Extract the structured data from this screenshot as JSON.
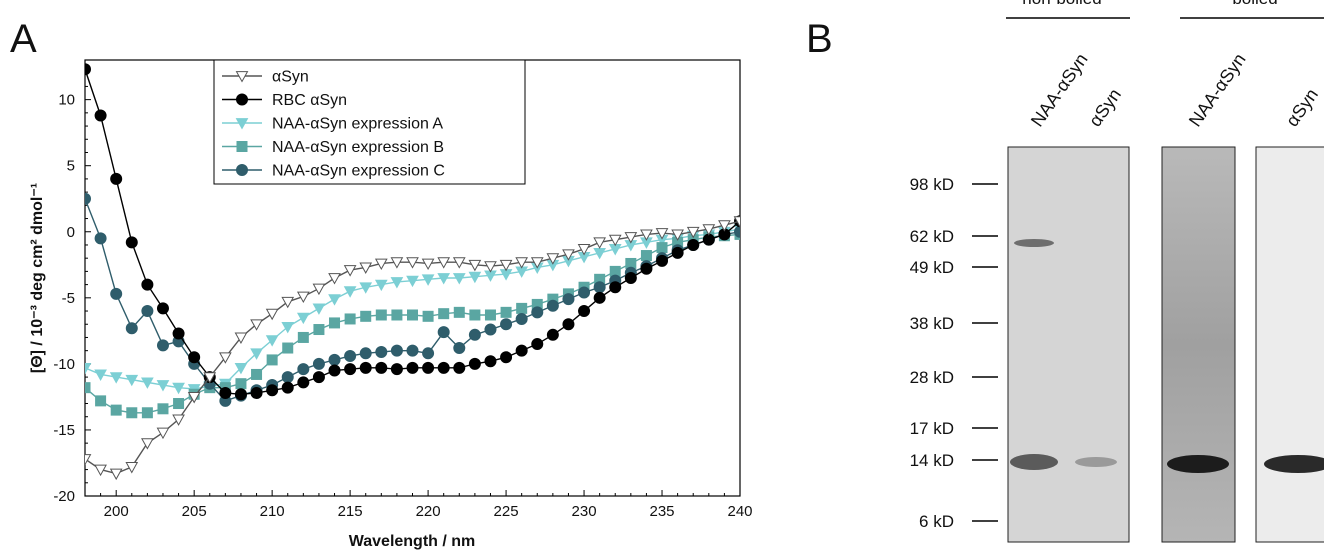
{
  "panels": {
    "a": "A",
    "b": "B"
  },
  "chart_data": {
    "type": "line",
    "xlabel": "Wavelength / nm",
    "ylabel": "[Θ] / 10⁻³ deg cm² dmol⁻¹",
    "xlim": [
      198,
      240
    ],
    "ylim": [
      -20,
      13
    ],
    "xticks": [
      200,
      205,
      210,
      215,
      220,
      225,
      230,
      235,
      240
    ],
    "yticks": [
      -20,
      -15,
      -10,
      -5,
      0,
      5,
      10
    ],
    "grid": false,
    "legend_position": "top-center",
    "x": [
      198,
      199,
      200,
      201,
      202,
      203,
      204,
      205,
      206,
      207,
      208,
      209,
      210,
      211,
      212,
      213,
      214,
      215,
      216,
      217,
      218,
      219,
      220,
      221,
      222,
      223,
      224,
      225,
      226,
      227,
      228,
      229,
      230,
      231,
      232,
      233,
      234,
      235,
      236,
      237,
      238,
      239,
      240
    ],
    "series": [
      {
        "name": "αSyn",
        "marker": "triangle-down-open",
        "color": "#555555",
        "fill": "#ffffff",
        "values": [
          -17.2,
          -18.0,
          -18.3,
          -17.8,
          -16.0,
          -15.2,
          -14.2,
          -12.5,
          -11.0,
          -9.5,
          -8.0,
          -7.0,
          -6.2,
          -5.3,
          -4.9,
          -4.3,
          -3.5,
          -2.9,
          -2.7,
          -2.4,
          -2.3,
          -2.3,
          -2.4,
          -2.3,
          -2.3,
          -2.5,
          -2.6,
          -2.5,
          -2.3,
          -2.3,
          -2.0,
          -1.7,
          -1.3,
          -0.8,
          -0.6,
          -0.4,
          -0.2,
          -0.1,
          -0.2,
          0.0,
          0.2,
          0.5,
          0.8
        ]
      },
      {
        "name": "RBC αSyn",
        "marker": "circle",
        "color": "#000000",
        "fill": "#000000",
        "values": [
          12.3,
          8.8,
          4.0,
          -0.8,
          -4.0,
          -5.8,
          -7.7,
          -9.5,
          -11.0,
          -12.2,
          -12.3,
          -12.2,
          -12.0,
          -11.8,
          -11.4,
          -11.0,
          -10.5,
          -10.4,
          -10.3,
          -10.3,
          -10.4,
          -10.3,
          -10.3,
          -10.3,
          -10.3,
          -10.0,
          -9.8,
          -9.5,
          -9.0,
          -8.5,
          -7.8,
          -7.0,
          -6.0,
          -5.0,
          -4.2,
          -3.5,
          -2.8,
          -2.2,
          -1.6,
          -1.0,
          -0.6,
          -0.2,
          0.8
        ]
      },
      {
        "name": "NAA-αSyn expression A",
        "marker": "triangle-down",
        "color": "#7ccfd4",
        "fill": "#7ccfd4",
        "values": [
          -10.3,
          -10.8,
          -11.0,
          -11.2,
          -11.4,
          -11.6,
          -11.8,
          -11.9,
          -11.7,
          -11.5,
          -10.3,
          -9.2,
          -8.2,
          -7.2,
          -6.5,
          -5.8,
          -5.1,
          -4.5,
          -4.2,
          -4.0,
          -3.8,
          -3.7,
          -3.6,
          -3.5,
          -3.5,
          -3.4,
          -3.3,
          -3.2,
          -3.0,
          -2.7,
          -2.5,
          -2.2,
          -1.9,
          -1.6,
          -1.3,
          -1.0,
          -0.8,
          -0.6,
          -0.5,
          -0.3,
          -0.2,
          0.0,
          0.2
        ]
      },
      {
        "name": "NAA-αSyn expression B",
        "marker": "square",
        "color": "#5aa6a2",
        "fill": "#5aa6a2",
        "values": [
          -11.8,
          -12.8,
          -13.5,
          -13.7,
          -13.7,
          -13.4,
          -13.0,
          -12.3,
          -11.8,
          -11.8,
          -11.5,
          -10.8,
          -9.7,
          -8.8,
          -8.0,
          -7.4,
          -6.9,
          -6.6,
          -6.4,
          -6.3,
          -6.3,
          -6.3,
          -6.4,
          -6.2,
          -6.1,
          -6.3,
          -6.3,
          -6.1,
          -5.8,
          -5.5,
          -5.1,
          -4.7,
          -4.2,
          -3.6,
          -3.0,
          -2.4,
          -1.8,
          -1.2,
          -0.8,
          -0.6,
          -0.4,
          -0.3,
          -0.2
        ]
      },
      {
        "name": "NAA-αSyn expression C",
        "marker": "circle",
        "color": "#2f5d6b",
        "fill": "#2f5d6b",
        "values": [
          2.5,
          -0.5,
          -4.7,
          -7.3,
          -6.0,
          -8.6,
          -8.3,
          -10.0,
          -11.5,
          -12.8,
          -12.4,
          -12.0,
          -11.6,
          -11.0,
          -10.4,
          -10.0,
          -9.7,
          -9.4,
          -9.2,
          -9.1,
          -9.0,
          -9.0,
          -9.2,
          -7.6,
          -8.8,
          -7.8,
          -7.4,
          -7.0,
          -6.6,
          -6.1,
          -5.6,
          -5.1,
          -4.6,
          -4.2,
          -3.7,
          -3.1,
          -2.6,
          -2.0,
          -1.4,
          -1.0,
          -0.6,
          -0.2,
          0.0
        ]
      }
    ]
  },
  "gel": {
    "header_nonboiled": "non-boiled",
    "header_boiled": "boiled",
    "lanes": [
      "NAA-αSyn",
      "αSyn",
      "NAA-αSyn",
      "αSyn"
    ],
    "markers": [
      "98 kD",
      "62 kD",
      "49 kD",
      "38 kD",
      "28 kD",
      "17 kD",
      "14 kD",
      "6 kD"
    ]
  }
}
